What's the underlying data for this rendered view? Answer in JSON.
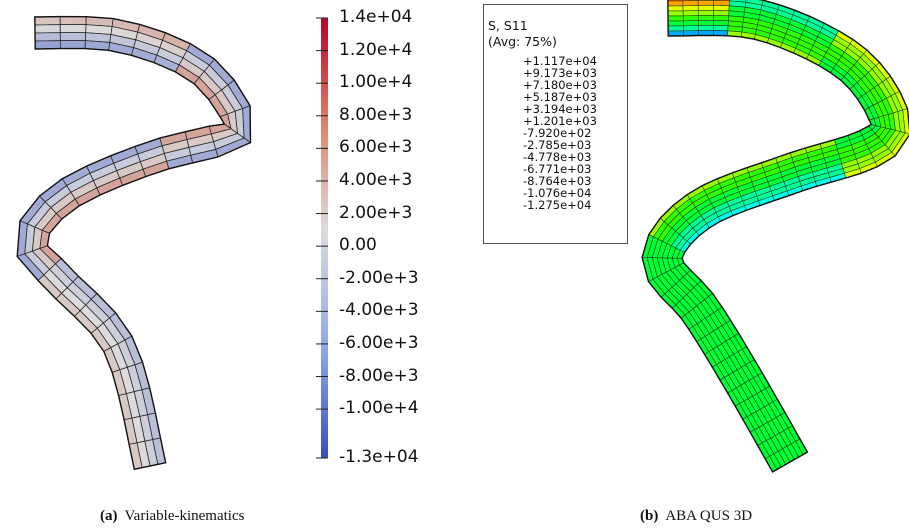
{
  "left_panel": {
    "caption_letter": "(a)",
    "caption_text": "Variable-kinematics",
    "colorbar": {
      "labels": [
        "1.4e+04",
        "1.20e+4",
        "1.00e+4",
        "8.00e+3",
        "6.00e+3",
        "4.00e+3",
        "2.00e+3",
        "0.00",
        "-2.00e+3",
        "-4.00e+3",
        "-6.00e+3",
        "-8.00e+3",
        "-1.00e+4",
        "-1.3e+04"
      ],
      "values": [
        14000,
        12000,
        10000,
        8000,
        6000,
        4000,
        2000,
        0,
        -2000,
        -4000,
        -6000,
        -8000,
        -10000,
        -13000
      ],
      "range": [
        -13000,
        14000
      ],
      "colormap": "cool-warm",
      "colors": {
        "low": "#3b4cc0",
        "mid": "#dddddd",
        "high": "#b40426"
      }
    }
  },
  "right_panel": {
    "caption_letter": "(b)",
    "caption_text": "ABA QUS 3D",
    "legend": {
      "title_line1": "S, S11",
      "title_line2": "(Avg: 75%)",
      "labels": [
        "+1.117e+04",
        "+9.173e+03",
        "+7.180e+03",
        "+5.187e+03",
        "+3.194e+03",
        "+1.201e+03",
        "-7.920e+02",
        "-2.785e+03",
        "-4.778e+03",
        "-6.771e+03",
        "-8.764e+03",
        "-1.076e+04",
        "-1.275e+04"
      ],
      "colors": [
        "#ff0000",
        "#ff5500",
        "#ffa200",
        "#ffd700",
        "#e2ff00",
        "#97ff00",
        "#2eff00",
        "#00ff35",
        "#00ff9b",
        "#00ffeb",
        "#00a8ff",
        "#0052ff",
        "#0000ff"
      ]
    }
  }
}
